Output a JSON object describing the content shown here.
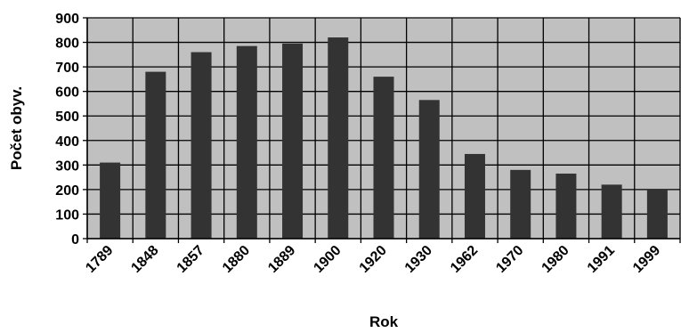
{
  "chart_data": {
    "type": "bar",
    "title": "",
    "xlabel": "Rok",
    "ylabel": "Počet obyv.",
    "categories": [
      "1789",
      "1848",
      "1857",
      "1880",
      "1889",
      "1900",
      "1920",
      "1930",
      "1962",
      "1970",
      "1980",
      "1991",
      "1999"
    ],
    "values": [
      310,
      680,
      760,
      785,
      795,
      820,
      660,
      565,
      345,
      280,
      265,
      220,
      200
    ],
    "ylim": [
      0,
      900
    ],
    "yticks": [
      "0",
      "100",
      "200",
      "300",
      "400",
      "500",
      "600",
      "700",
      "800",
      "900"
    ],
    "grid": true,
    "legend": "none",
    "colors": {
      "plot_background": "#c0c0c0",
      "bar": "#333333",
      "grid": "#000000"
    }
  }
}
